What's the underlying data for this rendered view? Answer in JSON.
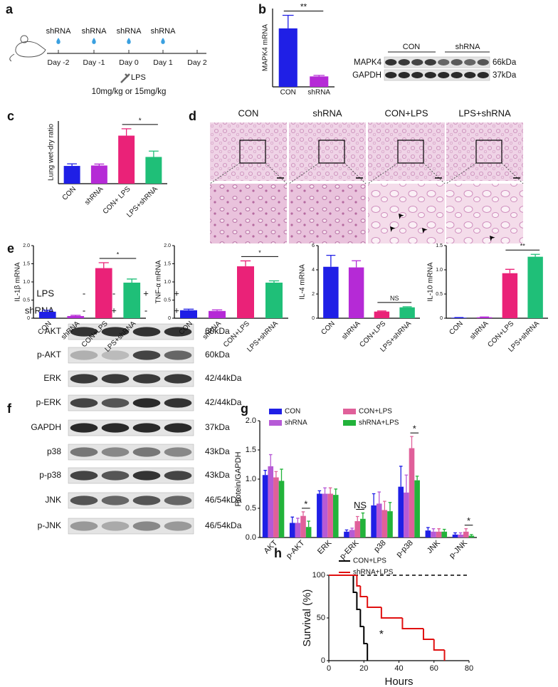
{
  "panel_labels": [
    "a",
    "b",
    "c",
    "d",
    "e",
    "f",
    "g",
    "h"
  ],
  "timeline": {
    "injections": [
      "shRNA",
      "shRNA",
      "shRNA",
      "shRNA"
    ],
    "days": [
      "Day -2",
      "Day -1",
      "Day 0",
      "Day 1",
      "Day 2"
    ],
    "treatment": "LPS",
    "dose": "10mg/kg or 15mg/kg"
  },
  "blot_b": {
    "groups": [
      "CON",
      "shRNA"
    ],
    "rows": [
      {
        "protein": "MAPK4",
        "size": "66kDa"
      },
      {
        "protein": "GAPDH",
        "size": "37kDa"
      }
    ]
  },
  "histology": {
    "groups": [
      "CON",
      "shRNA",
      "CON+LPS",
      "LPS+shRNA"
    ]
  },
  "blot_f": {
    "conditions": [
      {
        "name": "LPS",
        "signs": [
          "-",
          "-",
          "+",
          "+"
        ]
      },
      {
        "name": "shRNA",
        "signs": [
          "-",
          "+",
          "-",
          "+"
        ]
      }
    ],
    "rows": [
      {
        "protein": "AKT",
        "size": "60kDa"
      },
      {
        "protein": "p-AKT",
        "size": "60kDa"
      },
      {
        "protein": "ERK",
        "size": "42/44kDa"
      },
      {
        "protein": "p-ERK",
        "size": "42/44kDa"
      },
      {
        "protein": "GAPDH",
        "size": "37kDa"
      },
      {
        "protein": "p38",
        "size": "43kDa"
      },
      {
        "protein": "p-p38",
        "size": "43kDa"
      },
      {
        "protein": "JNK",
        "size": "46/54kDa"
      },
      {
        "protein": "p-JNK",
        "size": "46/54kDa"
      }
    ]
  },
  "chart_data": [
    {
      "type": "bar",
      "y_label": "MAPK4 mRNA",
      "categories": [
        "CON",
        "shRNA"
      ],
      "values": [
        1.12,
        0.2
      ],
      "errors": [
        0.25,
        0.02
      ],
      "colors": [
        "#1f1fe6",
        "#b52ad6"
      ],
      "ylim": [
        0,
        1.5
      ],
      "annotations": [
        {
          "text": "**",
          "between": [
            0,
            1
          ]
        }
      ]
    },
    {
      "type": "bar",
      "y_label": "Lung wet-dry ratio",
      "categories": [
        "CON",
        "shRNA",
        "CON+ LPS",
        "LPS+shRNA"
      ],
      "values": [
        4.85,
        4.87,
        6.3,
        5.28
      ],
      "errors": [
        0.1,
        0.07,
        0.33,
        0.28
      ],
      "colors": [
        "#1f1fe6",
        "#b52ad6",
        "#ea2278",
        "#1fbf78"
      ],
      "ylim": [
        4,
        7
      ],
      "annotations": [
        {
          "text": "*",
          "between": [
            2,
            3
          ]
        }
      ]
    },
    {
      "type": "bar",
      "y_label": "IL-1β mRNA",
      "categories": [
        "CON",
        "shRNA",
        "CON+LPS",
        "LPS+shRNA"
      ],
      "values": [
        0.18,
        0.06,
        1.38,
        0.98
      ],
      "errors": [
        0.04,
        0.02,
        0.15,
        0.1
      ],
      "colors": [
        "#1f1fe6",
        "#b52ad6",
        "#ea2278",
        "#1fbf78"
      ],
      "ylim": [
        0,
        2
      ],
      "yticks": [
        0,
        0.5,
        {
          "value": 1,
          "label": "1.0"
        },
        1.5,
        {
          "value": 2,
          "label": "2.0"
        }
      ],
      "annotations": [
        {
          "text": "*",
          "between": [
            2,
            3
          ]
        }
      ]
    },
    {
      "type": "bar",
      "y_label": "TNF-α mRNA",
      "categories": [
        "CON",
        "shRNA",
        "CON+LPS",
        "LPS+shRNA"
      ],
      "values": [
        0.22,
        0.2,
        1.43,
        0.98
      ],
      "errors": [
        0.03,
        0.03,
        0.15,
        0.05
      ],
      "colors": [
        "#1f1fe6",
        "#b52ad6",
        "#ea2278",
        "#1fbf78"
      ],
      "ylim": [
        0,
        2
      ],
      "yticks": [
        0,
        0.5,
        {
          "value": 1,
          "label": "1.0"
        },
        1.5,
        {
          "value": 2,
          "label": "2.0"
        }
      ],
      "annotations": [
        {
          "text": "*",
          "between": [
            2,
            3
          ]
        }
      ]
    },
    {
      "type": "bar",
      "y_label": "IL-4 mRNA",
      "categories": [
        "CON",
        "shRNA",
        "CON+LPS",
        "LPS+shRNA"
      ],
      "values": [
        4.25,
        4.2,
        0.55,
        0.9
      ],
      "errors": [
        0.95,
        0.55,
        0.05,
        0.05
      ],
      "colors": [
        "#1f1fe6",
        "#b52ad6",
        "#ea2278",
        "#1fbf78"
      ],
      "ylim": [
        0,
        6
      ],
      "yticks": [
        0,
        2,
        4,
        6
      ],
      "annotations": [
        {
          "text": "NS",
          "between": [
            2,
            3
          ]
        }
      ]
    },
    {
      "type": "bar",
      "y_label": "IL-10 mRNA",
      "categories": [
        "CON",
        "shRNA",
        "CON+LPS",
        "LPS+shRNA"
      ],
      "values": [
        0.01,
        0.02,
        0.93,
        1.27
      ],
      "errors": [
        0.005,
        0.005,
        0.08,
        0.05
      ],
      "colors": [
        "#1f1fe6",
        "#b52ad6",
        "#ea2278",
        "#1fbf78"
      ],
      "ylim": [
        0,
        1.5
      ],
      "yticks": [
        0,
        0.5,
        {
          "value": 1,
          "label": "1.0"
        },
        1.5
      ],
      "annotations": [
        {
          "text": "**",
          "between": [
            2,
            3
          ]
        }
      ]
    },
    {
      "type": "bar",
      "y_label": "Protein/GAPDH",
      "categories": [
        "AKT",
        "p-AKT",
        "ERK",
        "p-ERK",
        "p38",
        "p-p38",
        "JNK",
        "p-JNK"
      ],
      "series": [
        {
          "name": "CON",
          "color": "#1f1fe6",
          "values": [
            1.07,
            0.25,
            0.75,
            0.1,
            0.55,
            0.87,
            0.12,
            0.05
          ],
          "errors": [
            0.08,
            0.1,
            0.05,
            0.03,
            0.2,
            0.35,
            0.05,
            0.03
          ]
        },
        {
          "name": "shRNA",
          "color": "#b65ad6",
          "values": [
            1.22,
            0.25,
            0.75,
            0.13,
            0.58,
            0.77,
            0.1,
            0.05
          ],
          "errors": [
            0.2,
            0.08,
            0.1,
            0.03,
            0.2,
            0.3,
            0.05,
            0.03
          ]
        },
        {
          "name": "CON+LPS",
          "color": "#e0609a",
          "values": [
            1.03,
            0.37,
            0.75,
            0.28,
            0.47,
            1.53,
            0.1,
            0.1
          ],
          "errors": [
            0.1,
            0.07,
            0.1,
            0.08,
            0.15,
            0.2,
            0.05,
            0.05
          ]
        },
        {
          "name": "shRNA+LPS",
          "color": "#22b33a",
          "values": [
            0.97,
            0.18,
            0.73,
            0.32,
            0.45,
            0.98,
            0.1,
            0.03
          ],
          "errors": [
            0.2,
            0.1,
            0.1,
            0.1,
            0.15,
            0.07,
            0.04,
            0.02
          ]
        }
      ],
      "ylim": [
        0,
        2
      ],
      "yticks": [
        {
          "value": 0,
          "label": "0.0"
        },
        0.5,
        {
          "value": 1,
          "label": "1.0"
        },
        1.5,
        {
          "value": 2,
          "label": "2.0"
        }
      ],
      "annotations": [
        {
          "text": "*",
          "category": 1,
          "between": [
            2,
            3
          ]
        },
        {
          "text": "NS",
          "category": 3,
          "between": [
            2,
            3
          ]
        },
        {
          "text": "*",
          "category": 5,
          "between": [
            2,
            3
          ]
        },
        {
          "text": "*",
          "category": 7,
          "between": [
            2,
            3
          ]
        }
      ]
    },
    {
      "type": "line",
      "step": true,
      "y_label": "Survival (%)",
      "x_label": "Hours",
      "xlim": [
        0,
        80
      ],
      "xticks": [
        0,
        20,
        40,
        60,
        80
      ],
      "ylim": [
        0,
        100
      ],
      "yticks": [
        0,
        50,
        100
      ],
      "reference_line": 100,
      "annotation": "*",
      "series": [
        {
          "name": "CON+LPS",
          "color": "#000000",
          "x": [
            0,
            14,
            16,
            18,
            20,
            22
          ],
          "values": [
            100,
            80,
            60,
            40,
            20,
            0
          ]
        },
        {
          "name": "shRNA+LPS",
          "color": "#e01010",
          "x": [
            0,
            16,
            18,
            22,
            30,
            42,
            54,
            60,
            66
          ],
          "values": [
            100,
            87.5,
            75,
            62.5,
            50,
            37.5,
            25,
            12.5,
            0
          ]
        }
      ]
    }
  ]
}
